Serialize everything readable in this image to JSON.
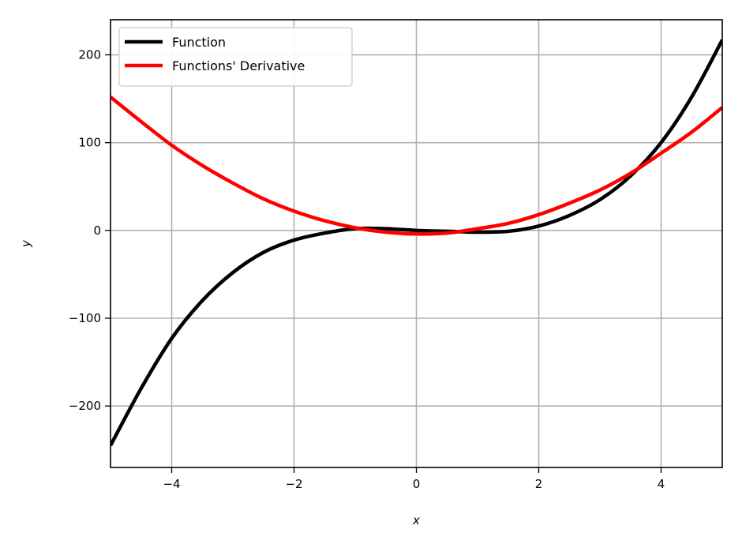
{
  "chart_data": {
    "type": "line",
    "title": "",
    "xlabel": "x",
    "ylabel": "y",
    "xlim": [
      -5,
      5
    ],
    "ylim": [
      -270,
      240
    ],
    "grid": true,
    "legend_position": "top-left",
    "x_ticks": [
      -4,
      -2,
      0,
      2,
      4
    ],
    "x_tick_labels": [
      "−4",
      "−2",
      "0",
      "2",
      "4"
    ],
    "y_ticks": [
      -200,
      -100,
      0,
      100,
      200
    ],
    "y_tick_labels": [
      "−200",
      "−100",
      "0",
      "100",
      "200"
    ],
    "series": [
      {
        "name": "Function",
        "color": "#000000",
        "x": [
          -5,
          -4.5,
          -4,
          -3.5,
          -3,
          -2.5,
          -2,
          -1.5,
          -1,
          -0.5,
          0,
          0.5,
          1,
          1.5,
          2,
          2.5,
          3,
          3.5,
          4,
          4.5,
          5
        ],
        "y": [
          -245,
          -180,
          -123,
          -80,
          -48,
          -25,
          -11,
          -3,
          2,
          2,
          0,
          -1,
          -2,
          -1,
          5,
          17,
          35,
          62,
          100,
          152,
          217
        ]
      },
      {
        "name": "Functions' Derivative",
        "color": "#ff0000",
        "x": [
          -5,
          -4.5,
          -4,
          -3.5,
          -3,
          -2.5,
          -2,
          -1.5,
          -1,
          -0.5,
          0,
          0.5,
          1,
          1.5,
          2,
          2.5,
          3,
          3.5,
          4,
          4.5,
          5
        ],
        "y": [
          152,
          124,
          97,
          74,
          54,
          36,
          22,
          11,
          3,
          -2,
          -4,
          -3,
          2,
          8,
          18,
          31,
          46,
          65,
          88,
          112,
          140
        ]
      }
    ]
  }
}
